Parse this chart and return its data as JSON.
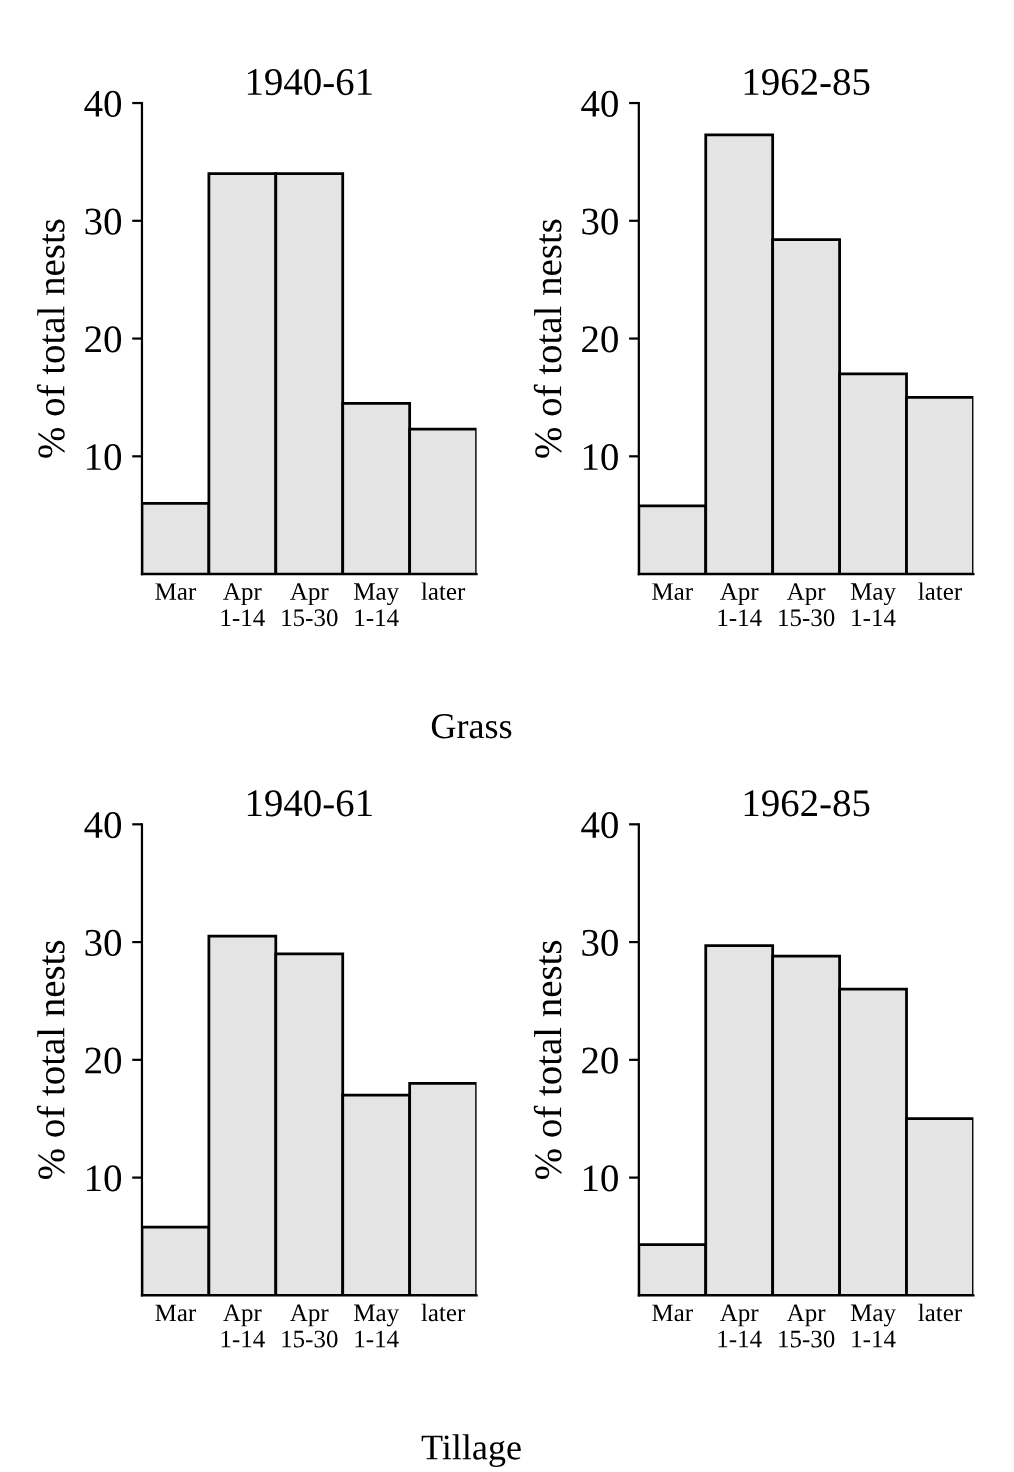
{
  "chart_data": [
    {
      "type": "bar",
      "title": "1940-61",
      "ylabel": "% of total nests",
      "categories": [
        "Mar",
        "Apr\n1-14",
        "Apr\n15-30",
        "May\n1-14",
        "later"
      ],
      "values": [
        6,
        34,
        34,
        14.5,
        12.3
      ],
      "color": "#e4e4e4",
      "ylim": [
        0,
        40
      ],
      "yticks": [
        10,
        20,
        30,
        40
      ],
      "grid": false
    },
    {
      "type": "bar",
      "title": "1962-85",
      "ylabel": "% of total nests",
      "categories": [
        "Mar",
        "Apr\n1-14",
        "Apr\n15-30",
        "May\n1-14",
        "later"
      ],
      "values": [
        5.8,
        37.3,
        28.4,
        17,
        15
      ],
      "color": "#e4e4e4",
      "ylim": [
        0,
        40
      ],
      "yticks": [
        10,
        20,
        30,
        40
      ],
      "grid": false,
      "annotations": [
        "Grass"
      ]
    },
    {
      "type": "bar",
      "title": "1940-61",
      "ylabel": "% of total nests",
      "categories": [
        "Mar",
        "Apr\n1-14",
        "Apr\n15-30",
        "May\n1-14",
        "later"
      ],
      "values": [
        5.8,
        30.5,
        29,
        17,
        18
      ],
      "color": "#e4e4e4",
      "ylim": [
        0,
        40
      ],
      "yticks": [
        10,
        20,
        30,
        40
      ],
      "grid": false
    },
    {
      "type": "bar",
      "title": "1962-85",
      "ylabel": "% of total nests",
      "categories": [
        "Mar",
        "Apr\n1-14",
        "Apr\n15-30",
        "May\n1-14",
        "later"
      ],
      "values": [
        4.3,
        29.7,
        28.8,
        26,
        15
      ],
      "color": "#e4e4e4",
      "ylim": [
        0,
        40
      ],
      "yticks": [
        10,
        20,
        30,
        40
      ],
      "grid": false,
      "annotations": [
        "Tillage"
      ]
    }
  ]
}
